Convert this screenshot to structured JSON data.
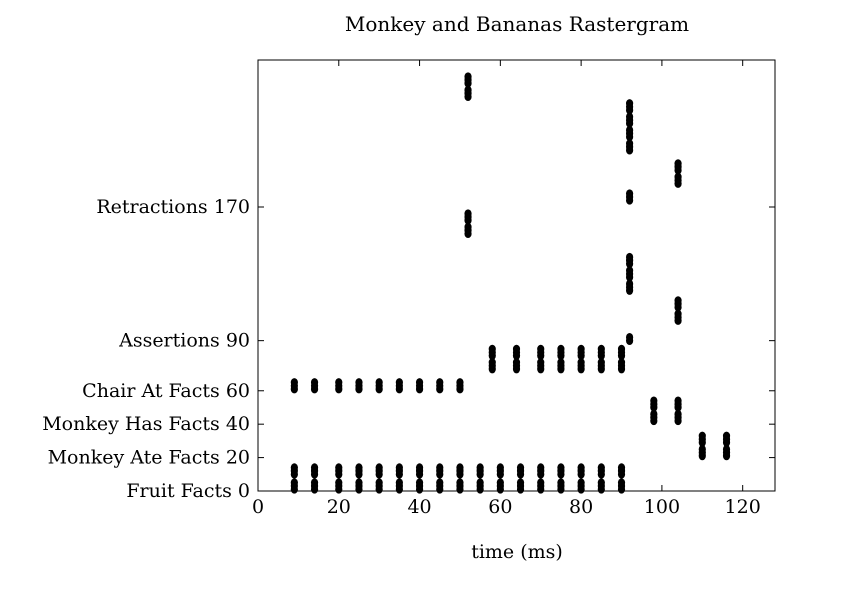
{
  "chart_data": {
    "type": "scatter",
    "title": "Monkey and Bananas Rastergram",
    "xlabel": "time (ms)",
    "ylabel": "",
    "xlim": [
      0,
      128
    ],
    "ylim": [
      0,
      258
    ],
    "x_ticks": [
      {
        "value": 0,
        "label": "0"
      },
      {
        "value": 20,
        "label": "20"
      },
      {
        "value": 40,
        "label": "40"
      },
      {
        "value": 60,
        "label": "60"
      },
      {
        "value": 80,
        "label": "80"
      },
      {
        "value": 100,
        "label": "100"
      },
      {
        "value": 120,
        "label": "120"
      }
    ],
    "y_ticks": [
      {
        "value": 0,
        "label": "Fruit Facts 0"
      },
      {
        "value": 20,
        "label": "Monkey Ate Facts 20"
      },
      {
        "value": 40,
        "label": "Monkey Has Facts 40"
      },
      {
        "value": 60,
        "label": "Chair At Facts 60"
      },
      {
        "value": 90,
        "label": "Assertions 90"
      },
      {
        "value": 170,
        "label": "Retractions 170"
      }
    ],
    "grid": false,
    "marker_color": "#000000",
    "events": [
      {
        "x": 9,
        "y": [
          1,
          3,
          5,
          10,
          12,
          14
        ]
      },
      {
        "x": 14,
        "y": [
          1,
          3,
          5,
          10,
          12,
          14
        ]
      },
      {
        "x": 20,
        "y": [
          1,
          3,
          5,
          10,
          12,
          14
        ]
      },
      {
        "x": 25,
        "y": [
          1,
          3,
          5,
          10,
          12,
          14
        ]
      },
      {
        "x": 30,
        "y": [
          1,
          3,
          5,
          10,
          12,
          14
        ]
      },
      {
        "x": 35,
        "y": [
          1,
          3,
          5,
          10,
          12,
          14
        ]
      },
      {
        "x": 40,
        "y": [
          1,
          3,
          5,
          10,
          12,
          14
        ]
      },
      {
        "x": 45,
        "y": [
          1,
          3,
          5,
          10,
          12,
          14
        ]
      },
      {
        "x": 50,
        "y": [
          1,
          3,
          5,
          10,
          12,
          14
        ]
      },
      {
        "x": 55,
        "y": [
          1,
          3,
          5,
          10,
          12,
          14
        ]
      },
      {
        "x": 60,
        "y": [
          1,
          3,
          5,
          10,
          12,
          14
        ]
      },
      {
        "x": 65,
        "y": [
          1,
          3,
          5,
          10,
          12,
          14
        ]
      },
      {
        "x": 70,
        "y": [
          1,
          3,
          5,
          10,
          12,
          14
        ]
      },
      {
        "x": 75,
        "y": [
          1,
          3,
          5,
          10,
          12,
          14
        ]
      },
      {
        "x": 80,
        "y": [
          1,
          3,
          5,
          10,
          12,
          14
        ]
      },
      {
        "x": 85,
        "y": [
          1,
          3,
          5,
          10,
          12,
          14
        ]
      },
      {
        "x": 90,
        "y": [
          1,
          3,
          5,
          10,
          12,
          14
        ]
      },
      {
        "x": 9,
        "y": [
          61,
          63,
          65
        ]
      },
      {
        "x": 14,
        "y": [
          61,
          63,
          65
        ]
      },
      {
        "x": 20,
        "y": [
          61,
          63,
          65
        ]
      },
      {
        "x": 25,
        "y": [
          61,
          63,
          65
        ]
      },
      {
        "x": 30,
        "y": [
          61,
          63,
          65
        ]
      },
      {
        "x": 35,
        "y": [
          61,
          63,
          65
        ]
      },
      {
        "x": 40,
        "y": [
          61,
          63,
          65
        ]
      },
      {
        "x": 45,
        "y": [
          61,
          63,
          65
        ]
      },
      {
        "x": 50,
        "y": [
          61,
          63,
          65
        ]
      },
      {
        "x": 58,
        "y": [
          73,
          75,
          77,
          81,
          83,
          85
        ]
      },
      {
        "x": 64,
        "y": [
          73,
          75,
          77,
          81,
          83,
          85
        ]
      },
      {
        "x": 70,
        "y": [
          73,
          75,
          77,
          81,
          83,
          85
        ]
      },
      {
        "x": 75,
        "y": [
          73,
          75,
          77,
          81,
          83,
          85
        ]
      },
      {
        "x": 80,
        "y": [
          73,
          75,
          77,
          81,
          83,
          85
        ]
      },
      {
        "x": 85,
        "y": [
          73,
          75,
          77,
          81,
          83,
          85
        ]
      },
      {
        "x": 90,
        "y": [
          73,
          75,
          77,
          81,
          83,
          85
        ]
      },
      {
        "x": 52,
        "y": [
          154,
          156,
          158,
          162,
          164,
          166,
          236,
          238,
          240,
          244,
          246,
          248
        ]
      },
      {
        "x": 92,
        "y": [
          90,
          92,
          120,
          122,
          124,
          128,
          130,
          132,
          136,
          138,
          140,
          174,
          176,
          178,
          204,
          206,
          208,
          212,
          214,
          216,
          220,
          222,
          224,
          228,
          230,
          232
        ]
      },
      {
        "x": 98,
        "y": [
          42,
          44,
          46,
          50,
          52,
          54
        ]
      },
      {
        "x": 104,
        "y": [
          42,
          44,
          46,
          50,
          52,
          54,
          102,
          104,
          106,
          110,
          112,
          114,
          184,
          186,
          188,
          192,
          194,
          196
        ]
      },
      {
        "x": 110,
        "y": [
          21,
          23,
          25,
          29,
          31,
          33
        ]
      },
      {
        "x": 116,
        "y": [
          21,
          23,
          25,
          29,
          31,
          33
        ]
      }
    ]
  }
}
